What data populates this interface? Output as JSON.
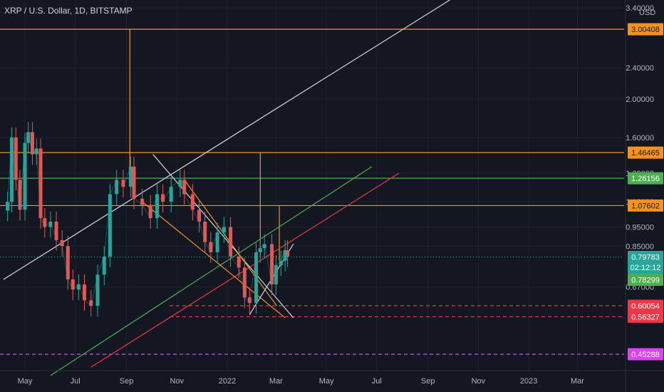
{
  "header": {
    "symbol": "XRP / U.S. Dollar, 1D, BITSTAMP",
    "currency": "USD"
  },
  "chart_data": {
    "type": "line",
    "title": "XRP / U.S. Dollar, 1D, BITSTAMP",
    "ylabel": "USD",
    "yscale": "log",
    "ylim": [
      0.43,
      3.5
    ],
    "x_tick_labels": [
      "May",
      "Jul",
      "Sep",
      "Nov",
      "2022",
      "Mar",
      "May",
      "Jul",
      "Sep",
      "Nov",
      "2023",
      "Mar"
    ],
    "y_tick_labels": [
      "3.40000",
      "2.40000",
      "2.00000",
      "1.60000",
      "1.30000",
      "1.10000",
      "0.95000",
      "0.85000",
      "0.67000"
    ],
    "price_series": {
      "name": "",
      "dates": [
        "2021-04-10",
        "2021-04-15",
        "2021-04-20",
        "2021-04-25",
        "2021-05-01",
        "2021-05-05",
        "2021-05-10",
        "2021-05-15",
        "2021-05-20",
        "2021-05-25",
        "2021-06-01",
        "2021-06-08",
        "2021-06-15",
        "2021-06-22",
        "2021-06-28",
        "2021-07-05",
        "2021-07-12",
        "2021-07-20",
        "2021-07-28",
        "2021-08-05",
        "2021-08-12",
        "2021-08-20",
        "2021-08-28",
        "2021-09-06",
        "2021-09-10",
        "2021-09-20",
        "2021-09-30",
        "2021-10-08",
        "2021-10-15",
        "2021-10-25",
        "2021-11-05",
        "2021-11-10",
        "2021-11-20",
        "2021-11-28",
        "2021-12-05",
        "2021-12-12",
        "2021-12-20",
        "2021-12-28",
        "2022-01-05",
        "2022-01-15",
        "2022-01-22",
        "2022-01-28",
        "2022-02-05",
        "2022-02-10",
        "2022-02-15",
        "2022-02-24",
        "2022-03-01",
        "2022-03-07",
        "2022-03-12",
        "2022-03-15"
      ],
      "close": [
        1.1,
        1.6,
        1.25,
        1.05,
        1.55,
        1.65,
        1.45,
        1.5,
        1.0,
        0.95,
        0.98,
        0.88,
        0.85,
        0.7,
        0.66,
        0.68,
        0.62,
        0.6,
        0.72,
        0.8,
        1.15,
        1.25,
        1.2,
        1.35,
        1.12,
        1.08,
        1.0,
        1.15,
        1.1,
        1.2,
        1.25,
        1.15,
        1.05,
        0.98,
        0.87,
        0.82,
        0.92,
        0.95,
        0.8,
        0.75,
        0.63,
        0.61,
        0.82,
        0.84,
        0.86,
        0.68,
        0.76,
        0.78,
        0.83,
        0.8
      ]
    },
    "horizontal_levels": [
      {
        "label": "3.00408",
        "value": 3.00408,
        "color": "#f7931a",
        "style": "solid"
      },
      {
        "label": "1.46465",
        "value": 1.46465,
        "color": "#f7931a",
        "style": "solid"
      },
      {
        "label": "1.26156",
        "value": 1.26156,
        "color": "#4caf50",
        "style": "solid"
      },
      {
        "label": "1.07602",
        "value": 1.07602,
        "color": "#f7931a",
        "style": "solid"
      },
      {
        "label": "0.60054",
        "value": 0.60054,
        "color": "#f23645",
        "style": "dashed"
      },
      {
        "label": "0.56327",
        "value": 0.56327,
        "color": "#f23645",
        "style": "dashed"
      },
      {
        "label": "0.45288",
        "value": 0.45288,
        "color": "#e040fb",
        "style": "dashed"
      }
    ],
    "last_price": {
      "label": "0.79783",
      "value": 0.79783,
      "countdown": "02:12:12",
      "color": "#26a69a"
    },
    "prev_close": {
      "label": "0.78299",
      "value": 0.78299,
      "color": "#4caf50"
    },
    "trendlines": [
      {
        "from": [
          "2021-04-05",
          0.7
        ],
        "to": [
          "2022-10-01",
          3.6
        ],
        "color": "#d1d4dc"
      },
      {
        "from": [
          "2021-06-01",
          0.4
        ],
        "to": [
          "2022-06-25",
          1.35
        ],
        "color": "#4caf50"
      },
      {
        "from": [
          "2021-07-20",
          0.42
        ],
        "to": [
          "2022-07-28",
          1.3
        ],
        "color": "#f23645"
      },
      {
        "from": [
          "2021-10-03",
          1.45
        ],
        "to": [
          "2022-03-22",
          0.56
        ],
        "color": "#d1d4dc"
      },
      {
        "from": [
          "2021-09-20",
          1.1
        ],
        "to": [
          "2022-03-12",
          0.56
        ],
        "color": "#f7931a"
      },
      {
        "from": [
          "2021-11-10",
          1.25
        ],
        "to": [
          "2022-03-02",
          0.6
        ],
        "color": "#f7931a"
      },
      {
        "from": [
          "2022-01-28",
          0.57
        ],
        "to": [
          "2022-03-22",
          0.86
        ],
        "color": "#d1d4dc"
      }
    ],
    "vertical_markers": [
      {
        "date": "2021-09-05",
        "from": 1.26156,
        "to": 3.00408,
        "color": "#f7931a"
      },
      {
        "date": "2022-02-10",
        "from": 0.8,
        "to": 1.46465,
        "color": "#f7931a"
      },
      {
        "date": "2022-03-05",
        "from": 0.78,
        "to": 1.07602,
        "color": "#f7931a"
      }
    ],
    "grid": true
  }
}
